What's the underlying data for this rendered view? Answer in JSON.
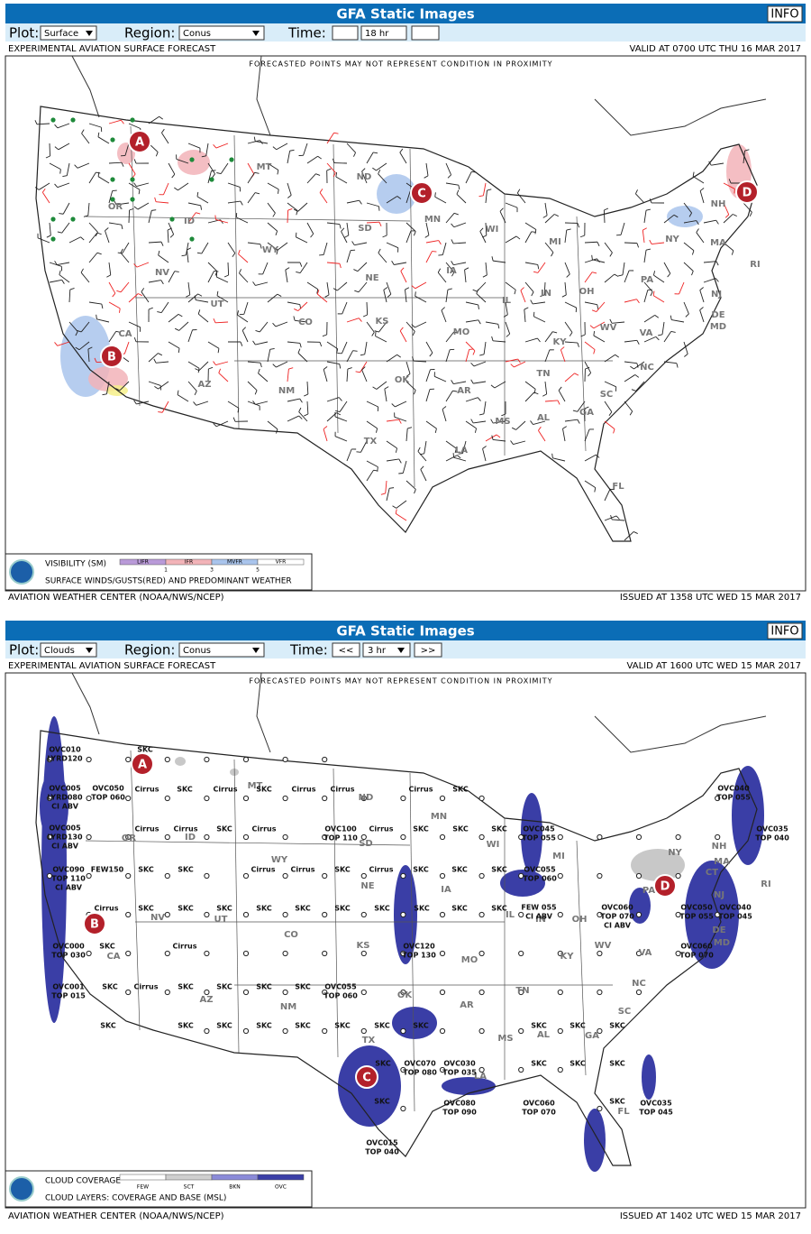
{
  "panels": [
    {
      "title": "GFA Static Images",
      "info": "INFO",
      "plot_label": "Plot:",
      "plot_value": "Surface",
      "region_label": "Region:",
      "region_value": "Conus",
      "time_label": "Time:",
      "time_value": "18 hr",
      "product": "EXPERIMENTAL AVIATION SURFACE FORECAST",
      "valid": "VALID AT 0700 UTC THU 16 MAR 2017",
      "note": "FORECASTED POINTS MAY NOT REPRESENT CONDITION IN PROXIMITY",
      "states": [
        "MT",
        "ND",
        "MN",
        "WI",
        "MI",
        "NY",
        "NH",
        "MA",
        "RI",
        "NJ",
        "PA",
        "DE",
        "MD",
        "OH",
        "IN",
        "IL",
        "IA",
        "SD",
        "NE",
        "WY",
        "ID",
        "OR",
        "NV",
        "UT",
        "CO",
        "KS",
        "MO",
        "KY",
        "WV",
        "VA",
        "NC",
        "TN",
        "AR",
        "OK",
        "SC",
        "GA",
        "AL",
        "MS",
        "LA",
        "TX",
        "NM",
        "AZ",
        "CA",
        "FL"
      ],
      "markers": [
        "A",
        "B",
        "C",
        "D"
      ],
      "legend": {
        "title": "VISIBILITY (SM)",
        "categories": [
          "LIFR",
          "IFR",
          "MVFR",
          "VFR"
        ],
        "breaks": [
          "1",
          "3",
          "5"
        ],
        "subtitle": "SURFACE WINDS/GUSTS(RED) AND PREDOMINANT WEATHER"
      },
      "footer_left": "AVIATION WEATHER CENTER (NOAA/NWS/NCEP)",
      "footer_right": "ISSUED AT 1358 UTC WED 15 MAR 2017"
    },
    {
      "title": "GFA Static Images",
      "info": "INFO",
      "plot_label": "Plot:",
      "plot_value": "Clouds",
      "region_label": "Region:",
      "region_value": "Conus",
      "time_label": "Time:",
      "time_prev": "<<",
      "time_value": "3 hr",
      "time_next": ">>",
      "product": "EXPERIMENTAL AVIATION SURFACE FORECAST",
      "valid": "VALID AT 1600 UTC WED 15 MAR 2017",
      "note": "FORECASTED POINTS MAY NOT REPRESENT CONDITION IN PROXIMITY",
      "states": [
        "MT",
        "ND",
        "MN",
        "WI",
        "MI",
        "NY",
        "NH",
        "MA",
        "RI",
        "NJ",
        "PA",
        "DE",
        "MD",
        "OH",
        "IN",
        "IL",
        "IA",
        "SD",
        "NE",
        "WY",
        "ID",
        "OR",
        "NV",
        "UT",
        "CO",
        "KS",
        "MO",
        "KY",
        "WV",
        "VA",
        "NC",
        "TN",
        "AR",
        "OK",
        "SC",
        "GA",
        "AL",
        "MS",
        "LA",
        "TX",
        "NM",
        "AZ",
        "CA",
        "FL",
        "CT"
      ],
      "markers": [
        "A",
        "B",
        "C",
        "D"
      ],
      "labels": [
        "OVC010",
        "LYRD120",
        "SKC",
        "OVC005",
        "LYRD080",
        "CI ABV",
        "OVC050",
        "TOP 060",
        "Cirrus",
        "SKC",
        "Cirrus",
        "SKC",
        "Cirrus",
        "Cirrus",
        "Cirrus",
        "SKC",
        "OVC005",
        "LYRD130",
        "CI ABV",
        "Cirrus",
        "Cirrus",
        "SKC",
        "Cirrus",
        "OVC100",
        "TOP 110",
        "Cirrus",
        "SKC",
        "SKC",
        "SKC",
        "OVC045",
        "TOP 055",
        "OVC090",
        "TOP 110",
        "CI ABV",
        "FEW150",
        "SKC",
        "SKC",
        "Cirrus",
        "Cirrus",
        "SKC",
        "Cirrus",
        "SKC",
        "SKC",
        "SKC",
        "OVC055",
        "TOP 060",
        "Cirrus",
        "SKC",
        "SKC",
        "SKC",
        "SKC",
        "SKC",
        "SKC",
        "SKC",
        "SKC",
        "SKC",
        "SKC",
        "FEW 055",
        "CI ABV",
        "OVC060",
        "TOP 070",
        "CI ABV",
        "OVC050",
        "TOP 055",
        "OVC040",
        "TOP 045",
        "OVC040",
        "TOP 055",
        "OVC035",
        "TOP 040",
        "OVC000",
        "TOP 030",
        "OVC001",
        "TOP 015",
        "OVC120",
        "TOP 130",
        "OVC055",
        "TOP 060",
        "OVC070",
        "TOP 080",
        "OVC030",
        "TOP 035",
        "OVC080",
        "TOP 090",
        "OVC060",
        "TOP 070",
        "OVC035",
        "TOP 045",
        "OVC015",
        "TOP 040",
        "OVC060",
        "TOP 070",
        "SKC",
        "Cirrus",
        "SKC",
        "Cirrus",
        "SKC",
        "SKC",
        "SKC",
        "SKC",
        "SKC",
        "SKC",
        "SKC",
        "SKC",
        "SKC",
        "SKC",
        "SKC",
        "SKC",
        "SKC",
        "SKC",
        "SKC",
        "SKC",
        "SKC",
        "SKC",
        "SKC",
        "SKC",
        "SKC"
      ],
      "legend": {
        "title": "CLOUD COVERAGE",
        "categories": [
          "FEW",
          "SCT",
          "BKN",
          "OVC"
        ],
        "subtitle": "CLOUD LAYERS: COVERAGE AND BASE (MSL)"
      },
      "footer_left": "AVIATION WEATHER CENTER (NOAA/NWS/NCEP)",
      "footer_right": "ISSUED AT 1402 UTC WED 15 MAR 2017"
    }
  ]
}
